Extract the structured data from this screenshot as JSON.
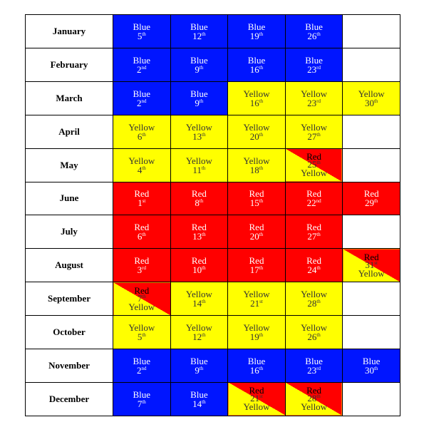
{
  "months": [
    {
      "name": "January",
      "cells": [
        {
          "type": "blue",
          "label": "Blue",
          "day": "5",
          "suffix": "th"
        },
        {
          "type": "blue",
          "label": "Blue",
          "day": "12",
          "suffix": "th"
        },
        {
          "type": "blue",
          "label": "Blue",
          "day": "19",
          "suffix": "th"
        },
        {
          "type": "blue",
          "label": "Blue",
          "day": "26",
          "suffix": "th"
        },
        {
          "type": "empty"
        }
      ]
    },
    {
      "name": "February",
      "cells": [
        {
          "type": "blue",
          "label": "Blue",
          "day": "2",
          "suffix": "nd"
        },
        {
          "type": "blue",
          "label": "Blue",
          "day": "9",
          "suffix": "th"
        },
        {
          "type": "blue",
          "label": "Blue",
          "day": "16",
          "suffix": "th"
        },
        {
          "type": "blue",
          "label": "Blue",
          "day": "23",
          "suffix": "rd"
        },
        {
          "type": "empty"
        }
      ]
    },
    {
      "name": "March",
      "cells": [
        {
          "type": "blue",
          "label": "Blue",
          "day": "2",
          "suffix": "nd"
        },
        {
          "type": "blue",
          "label": "Blue",
          "day": "9",
          "suffix": "th"
        },
        {
          "type": "yellow",
          "label": "Yellow",
          "day": "16",
          "suffix": "th"
        },
        {
          "type": "yellow",
          "label": "Yellow",
          "day": "23",
          "suffix": "rd"
        },
        {
          "type": "yellow",
          "label": "Yellow",
          "day": "30",
          "suffix": "th"
        }
      ]
    },
    {
      "name": "April",
      "cells": [
        {
          "type": "yellow",
          "label": "Yellow",
          "day": "6",
          "suffix": "th"
        },
        {
          "type": "yellow",
          "label": "Yellow",
          "day": "13",
          "suffix": "th"
        },
        {
          "type": "yellow",
          "label": "Yellow",
          "day": "20",
          "suffix": "th"
        },
        {
          "type": "yellow",
          "label": "Yellow",
          "day": "27",
          "suffix": "th"
        },
        {
          "type": "empty"
        }
      ]
    },
    {
      "name": "May",
      "cells": [
        {
          "type": "yellow",
          "label": "Yellow",
          "day": "4",
          "suffix": "th"
        },
        {
          "type": "yellow",
          "label": "Yellow",
          "day": "11",
          "suffix": "th"
        },
        {
          "type": "yellow",
          "label": "Yellow",
          "day": "18",
          "suffix": "th"
        },
        {
          "type": "split",
          "top": "Red",
          "day": "25",
          "suffix": "th",
          "bottom": "Yellow"
        },
        {
          "type": "empty"
        }
      ]
    },
    {
      "name": "June",
      "cells": [
        {
          "type": "red",
          "label": "Red",
          "day": "1",
          "suffix": "st"
        },
        {
          "type": "red",
          "label": "Red",
          "day": "8",
          "suffix": "th"
        },
        {
          "type": "red",
          "label": "Red",
          "day": "15",
          "suffix": "th"
        },
        {
          "type": "red",
          "label": "Red",
          "day": "22",
          "suffix": "nd"
        },
        {
          "type": "red",
          "label": "Red",
          "day": "29",
          "suffix": "th"
        }
      ]
    },
    {
      "name": "July",
      "cells": [
        {
          "type": "red",
          "label": "Red",
          "day": "6",
          "suffix": "th"
        },
        {
          "type": "red",
          "label": "Red",
          "day": "13",
          "suffix": "th"
        },
        {
          "type": "red",
          "label": "Red",
          "day": "20",
          "suffix": "th"
        },
        {
          "type": "red",
          "label": "Red",
          "day": "27",
          "suffix": "th"
        },
        {
          "type": "empty"
        }
      ]
    },
    {
      "name": "August",
      "cells": [
        {
          "type": "red",
          "label": "Red",
          "day": "3",
          "suffix": "rd"
        },
        {
          "type": "red",
          "label": "Red",
          "day": "10",
          "suffix": "th"
        },
        {
          "type": "red",
          "label": "Red",
          "day": "17",
          "suffix": "th"
        },
        {
          "type": "red",
          "label": "Red",
          "day": "24",
          "suffix": "th"
        },
        {
          "type": "split",
          "top": "Red",
          "day": "31",
          "suffix": "st",
          "bottom": "Yellow"
        }
      ]
    },
    {
      "name": "September",
      "cells": [
        {
          "type": "split",
          "top": "Red",
          "day": "7",
          "suffix": "th",
          "bottom": "Yellow"
        },
        {
          "type": "yellow",
          "label": "Yellow",
          "day": "14",
          "suffix": "th"
        },
        {
          "type": "yellow",
          "label": "Yellow",
          "day": "21",
          "suffix": "st"
        },
        {
          "type": "yellow",
          "label": "Yellow",
          "day": "28",
          "suffix": "th"
        },
        {
          "type": "empty"
        }
      ]
    },
    {
      "name": "October",
      "cells": [
        {
          "type": "yellow",
          "label": "Yellow",
          "day": "5",
          "suffix": "th"
        },
        {
          "type": "yellow",
          "label": "Yellow",
          "day": "12",
          "suffix": "th"
        },
        {
          "type": "yellow",
          "label": "Yellow",
          "day": "19",
          "suffix": "th"
        },
        {
          "type": "yellow",
          "label": "Yellow",
          "day": "26",
          "suffix": "th"
        },
        {
          "type": "empty"
        }
      ]
    },
    {
      "name": "November",
      "cells": [
        {
          "type": "blue",
          "label": "Blue",
          "day": "2",
          "suffix": "nd"
        },
        {
          "type": "blue",
          "label": "Blue",
          "day": "9",
          "suffix": "th"
        },
        {
          "type": "blue",
          "label": "Blue",
          "day": "16",
          "suffix": "th"
        },
        {
          "type": "blue",
          "label": "Blue",
          "day": "23",
          "suffix": "rd"
        },
        {
          "type": "blue",
          "label": "Blue",
          "day": "30",
          "suffix": "th"
        }
      ]
    },
    {
      "name": "December",
      "cells": [
        {
          "type": "blue",
          "label": "Blue",
          "day": "7",
          "suffix": "th"
        },
        {
          "type": "blue",
          "label": "Blue",
          "day": "14",
          "suffix": "th"
        },
        {
          "type": "split",
          "top": "Red",
          "day": "21",
          "suffix": "st",
          "bottom": "Yellow"
        },
        {
          "type": "split",
          "top": "Red",
          "day": "28",
          "suffix": "th",
          "bottom": "Yellow"
        },
        {
          "type": "empty"
        }
      ]
    }
  ],
  "colors": {
    "blue": "#0015ff",
    "yellow": "#ffff00",
    "red": "#ff0000"
  }
}
